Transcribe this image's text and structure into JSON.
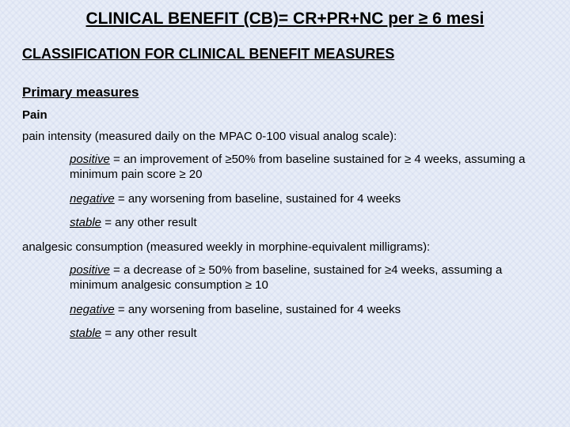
{
  "title": "CLINICAL BENEFIT (CB)= CR+PR+NC per ≥ 6 mesi",
  "subtitle": "CLASSIFICATION FOR CLINICAL BENEFIT MEASURES",
  "primary_heading": "Primary measures",
  "pain": {
    "name": "Pain",
    "intensity_desc": "pain intensity (measured daily on the MPAC 0-100 visual analog scale):",
    "positive_label": "positive",
    "positive_text": " = an improvement of ≥50% from baseline sustained for ≥ 4 weeks, assuming a minimum pain score ≥ 20",
    "negative_label": "negative",
    "negative_text": " = any worsening from baseline, sustained for 4 weeks",
    "stable_label": "stable",
    "stable_text": " = any other result"
  },
  "analgesic": {
    "desc": "analgesic consumption (measured weekly in morphine-equivalent milligrams):",
    "positive_label": "positive",
    "positive_text": " = a decrease of ≥ 50% from baseline, sustained for ≥4 weeks, assuming a minimum analgesic consumption ≥ 10",
    "negative_label": "negative",
    "negative_text": " = any worsening from baseline, sustained for 4 weeks",
    "stable_label": "stable",
    "stable_text": " = any other result"
  }
}
